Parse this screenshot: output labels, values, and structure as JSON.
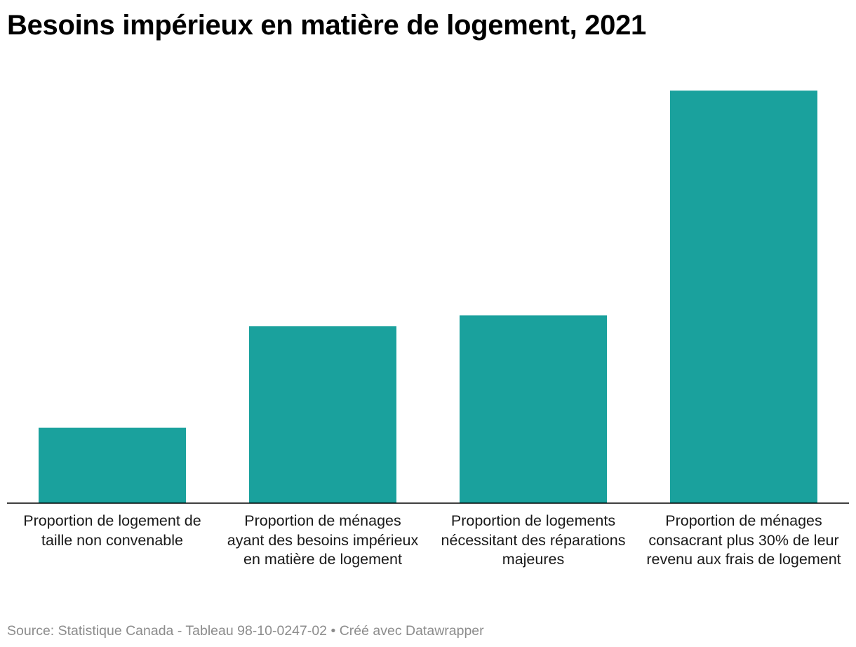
{
  "chart_data": {
    "type": "bar",
    "title": "Besoins impérieux en matière de logement, 2021",
    "categories": [
      "Proportion de logement de taille non convenable",
      "Proportion de ménages ayant des besoins impérieux en matière de logement",
      "Proportion de logements nécessitant des réparations majeures",
      "Proportion de ménages consacrant plus 30% de leur revenu aux frais de logement"
    ],
    "values": [
      5.5,
      12.9,
      13.7,
      30.1
    ],
    "ylim": [
      0,
      32
    ],
    "grid": false,
    "bar_color": "#1aa19d",
    "baseline_color": "#000000"
  },
  "footer": {
    "source": "Source: Statistique Canada - Tableau 98-10-0247-02",
    "separator": " • ",
    "credit": "Créé avec Datawrapper"
  }
}
